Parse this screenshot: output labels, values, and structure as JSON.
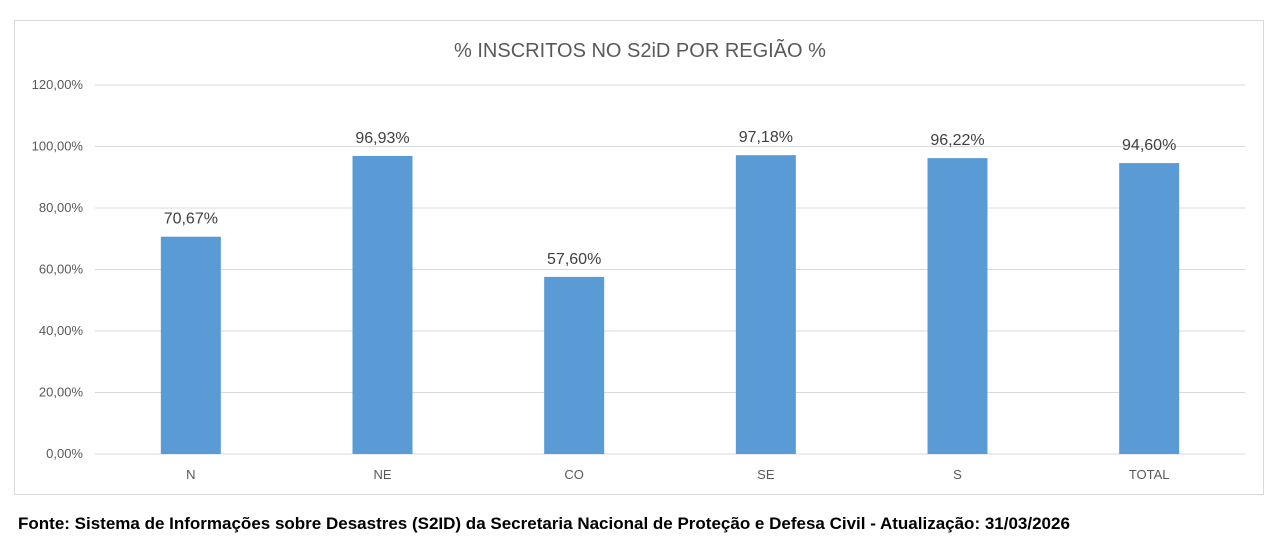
{
  "chart_data": {
    "type": "bar",
    "title": "% INSCRITOS NO S2iD POR REGIÃO %",
    "categories": [
      "N",
      "NE",
      "CO",
      "SE",
      "S",
      "TOTAL"
    ],
    "values": [
      70.67,
      96.93,
      57.6,
      97.18,
      96.22,
      94.6
    ],
    "data_labels": [
      "70,67%",
      "96,93%",
      "57,60%",
      "97,18%",
      "96,22%",
      "94,60%"
    ],
    "yticks": [
      0,
      20,
      40,
      60,
      80,
      100,
      120
    ],
    "ytick_labels": [
      "0,00%",
      "20,00%",
      "40,00%",
      "60,00%",
      "80,00%",
      "100,00%",
      "120,00%"
    ],
    "ylim": [
      0,
      120
    ],
    "xlabel": "",
    "ylabel": "",
    "grid": true,
    "legend": "none",
    "bar_color": "#5b9bd5",
    "grid_color": "#d9d9d9"
  },
  "footer": {
    "source_text": "Fonte: Sistema de Informações sobre Desastres (S2ID) da Secretaria Nacional de Proteção e Defesa Civil - Atualização: 31/03/2026"
  }
}
